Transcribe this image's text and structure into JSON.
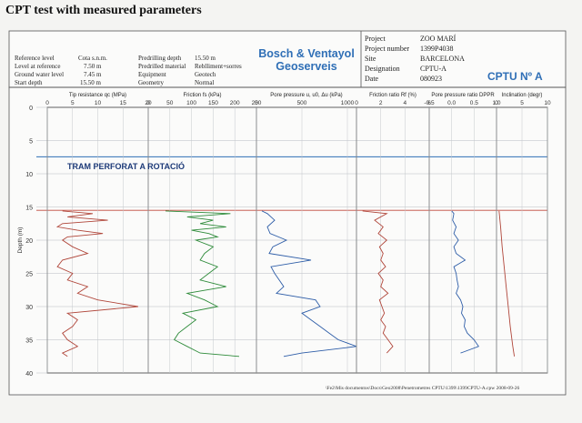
{
  "header": {
    "title": "CPT test with measured parameters",
    "left_params": [
      {
        "label": "Reference level",
        "value": "Cota s.n.m."
      },
      {
        "label": "Level at reference",
        "value": "7.50 m"
      },
      {
        "label": "Ground water level",
        "value": "7.45 m"
      },
      {
        "label": "Start depth",
        "value": "15.50 m"
      }
    ],
    "mid_params": [
      {
        "label": "Predrilling depth",
        "value": "15.50 m"
      },
      {
        "label": "Predrilled material",
        "value": "Reblliment+sorres"
      },
      {
        "label": "Equipment",
        "value": "Geotech"
      },
      {
        "label": "Geometry",
        "value": "Normal"
      }
    ],
    "company_line1": "Bosch & Ventayol",
    "company_line2": "Geoserveis",
    "project_info": [
      {
        "label": "Project",
        "value": "ZOO MARÍ"
      },
      {
        "label": "Project number",
        "value": "1399P4038"
      },
      {
        "label": "Site",
        "value": "BARCELONA"
      },
      {
        "label": "Designation",
        "value": "CPTU-A"
      },
      {
        "label": "Date",
        "value": "080923"
      }
    ],
    "test_id": "CPTU Nº A"
  },
  "footer": "\\Fe2\\Mis documentos\\Docs\\Geo2008\\Penetrometres CPTU\\1399\\1399CPTU-A.cpw   2008-09-26",
  "annotation": "TRAM PERFORAT A ROTACIÓ",
  "colors": {
    "tip": "#b0463a",
    "friction": "#2e8b3a",
    "pore": "#2f5ea8",
    "grid": "#9aa0a8",
    "accent": "#2f6fb6"
  },
  "chart_data": {
    "type": "line",
    "ylabel": "Depth (m)",
    "depth_ticks": [
      0,
      5,
      10,
      15,
      20,
      25,
      30,
      35,
      40
    ],
    "depth_range": [
      0,
      40
    ],
    "predrill_depth": 15.5,
    "groundwater_depth": 7.45,
    "panels": [
      {
        "key": "tip",
        "label": "Tip resistance qc (MPa)",
        "ticks": [
          "0",
          "5",
          "10",
          "15",
          "20"
        ],
        "xlim": [
          0,
          20
        ],
        "color": "#b0463a",
        "depth": [
          15.6,
          16,
          16.5,
          17,
          17.5,
          18,
          18.5,
          19,
          19.5,
          20,
          21,
          22,
          23,
          24,
          25,
          26,
          27,
          28,
          29,
          30,
          31,
          32,
          33,
          34,
          35,
          36,
          37,
          37.5
        ],
        "values": [
          3,
          9,
          4,
          12,
          3,
          2,
          6,
          11,
          4,
          3,
          5,
          8,
          3,
          2,
          5,
          4,
          8,
          6,
          10,
          18,
          4,
          6,
          5,
          3,
          4,
          6,
          3,
          4
        ]
      },
      {
        "key": "friction",
        "label": "Friction fs (kPa)",
        "ticks": [
          "0",
          "50",
          "100",
          "150",
          "200",
          "250"
        ],
        "xlim": [
          0,
          250
        ],
        "color": "#2e8b3a",
        "depth": [
          15.6,
          16,
          16.5,
          17,
          17.5,
          18,
          18.5,
          19,
          19.5,
          20,
          21,
          22,
          23,
          24,
          25,
          26,
          27,
          28,
          29,
          30,
          31,
          32,
          33,
          34,
          35,
          36,
          37,
          37.5
        ],
        "values": [
          40,
          190,
          90,
          150,
          120,
          180,
          100,
          140,
          160,
          110,
          150,
          130,
          120,
          160,
          140,
          120,
          180,
          90,
          130,
          160,
          80,
          110,
          90,
          70,
          60,
          90,
          120,
          210
        ]
      },
      {
        "key": "pore",
        "label": "Pore pressure u, u0, Δu (kPa)",
        "ticks": [
          "0",
          "500",
          "1000"
        ],
        "xlim": [
          0,
          1100
        ],
        "color": "#2f5ea8",
        "depth": [
          15.6,
          16,
          17,
          18,
          19,
          20,
          21,
          22,
          23,
          24,
          25,
          26,
          27,
          28,
          29,
          30,
          31,
          32,
          33,
          34,
          35,
          36,
          37,
          37.5
        ],
        "values": [
          60,
          120,
          200,
          120,
          150,
          330,
          180,
          140,
          600,
          160,
          200,
          250,
          300,
          220,
          650,
          700,
          500,
          600,
          700,
          800,
          900,
          1100,
          500,
          300
        ]
      },
      {
        "key": "ratio",
        "label": "Friction ratio Rf (%)",
        "ticks": [
          "0",
          "2",
          "4",
          "6"
        ],
        "xlim": [
          0,
          6
        ],
        "color": "#b0463a",
        "depth": [
          15.6,
          16,
          17,
          18,
          19,
          20,
          21,
          22,
          23,
          24,
          25,
          26,
          27,
          28,
          29,
          30,
          31,
          32,
          33,
          34,
          35,
          36,
          37
        ],
        "values": [
          0.5,
          2.5,
          1.5,
          2.2,
          1.8,
          2.5,
          1.9,
          2.2,
          2.0,
          2.4,
          1.8,
          2.2,
          2.0,
          2.6,
          1.9,
          2.1,
          2.3,
          2.0,
          2.4,
          2.2,
          2.6,
          3.0,
          2.5
        ]
      },
      {
        "key": "dppr",
        "label": "Pore pressure ratio DPPR",
        "ticks": [
          "-0.5",
          "0.0",
          "0.5",
          "1.0"
        ],
        "xlim": [
          -0.5,
          1.0
        ],
        "color": "#2f5ea8",
        "depth": [
          15.6,
          16,
          17,
          18,
          19,
          20,
          21,
          22,
          23,
          24,
          25,
          26,
          27,
          28,
          29,
          30,
          31,
          32,
          33,
          34,
          35,
          36,
          37
        ],
        "values": [
          0.0,
          0.05,
          0.02,
          0.1,
          0.05,
          0.15,
          0.05,
          0.1,
          0.3,
          0.05,
          0.1,
          0.12,
          0.15,
          0.1,
          0.2,
          0.25,
          0.22,
          0.3,
          0.28,
          0.35,
          0.5,
          0.6,
          0.2
        ]
      },
      {
        "key": "incl",
        "label": "Inclination (degr)",
        "ticks": [
          "0",
          "5",
          "10"
        ],
        "xlim": [
          0,
          10
        ],
        "color": "#b0463a",
        "depth": [
          15.6,
          18,
          21,
          24,
          27,
          30,
          33,
          36,
          37.5
        ],
        "values": [
          0.5,
          0.8,
          1.1,
          1.5,
          1.9,
          2.3,
          2.7,
          3.2,
          3.5
        ]
      }
    ]
  }
}
